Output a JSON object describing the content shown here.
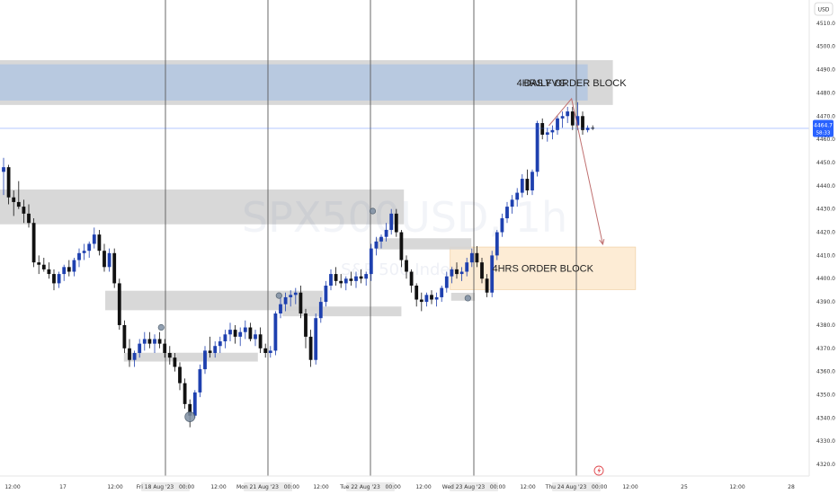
{
  "chart_data": {
    "type": "candlestick",
    "symbol": "SPX500USD, 1h",
    "symbol_sub": "S&P 500 Index",
    "currency": "USD",
    "ylim": [
      4315,
      4520
    ],
    "price_ticks": [
      4320.0,
      4330.0,
      4340.0,
      4350.0,
      4360.0,
      4370.0,
      4380.0,
      4390.0,
      4400.0,
      4410.0,
      4420.0,
      4430.0,
      4440.0,
      4450.0,
      4460.0,
      4470.0,
      4480.0,
      4490.0,
      4500.0,
      4510.0
    ],
    "time_labels": [
      "12:00",
      "17",
      "12:00",
      "Fri 18 Aug '23   00:00",
      "12:00",
      "Mon 21 Aug '23   00:00",
      "12:00",
      "Tue 22 Aug '23   00:00",
      "12:00",
      "Wed 23 Aug '23   00:00",
      "12:00",
      "Thu 24 Aug '23   00:00",
      "12:00",
      "25",
      "12:00",
      "28"
    ],
    "session_dividers": [
      3,
      5,
      7,
      9,
      11
    ],
    "last_price": "4464.7",
    "last_price_sub": "58:33",
    "last_price_value": 4464.7,
    "colors": {
      "up": "#1e40af",
      "down": "#111111",
      "zone_gray": "#d4d4d4",
      "zone_blue": "#b6c8e0",
      "zone_orange": "#fdebd3",
      "arrow": "#c07070",
      "price_line": "#2962ff"
    },
    "zones": [
      {
        "label": "DAILY ORDER BLOCK",
        "color": "gray",
        "x0": 0,
        "x1": 121.0,
        "y0": 4474.8,
        "y1": 4494.1
      },
      {
        "label": "4HRS FVG",
        "color": "blue",
        "x0": 0,
        "x1": 116.0,
        "y0": 4476.7,
        "y1": 4492.3
      },
      {
        "label": "4HRS ORDER BLOCK",
        "color": "orange",
        "x0": 89.4,
        "x1": 125.5,
        "y0": 4395.3,
        "y1": 4413.6
      },
      {
        "label": "",
        "color": "gray",
        "x0": 0,
        "x1": 79.5,
        "y0": 4423.4,
        "y1": 4438.4
      },
      {
        "label": "",
        "color": "gray",
        "x0": 20.9,
        "x1": 63.4,
        "y0": 4386.4,
        "y1": 4394.8
      },
      {
        "label": "",
        "color": "gray",
        "x0": 24.6,
        "x1": 50.5,
        "y0": 4364.3,
        "y1": 4368.1
      },
      {
        "label": "",
        "color": "gray",
        "x0": 56.1,
        "x1": 79.0,
        "y0": 4383.8,
        "y1": 4388.0
      },
      {
        "label": "",
        "color": "gray",
        "x0": 74.6,
        "x1": 92.9,
        "y0": 4412.6,
        "y1": 4417.4
      },
      {
        "label": "",
        "color": "gray",
        "x0": 89.6,
        "x1": 93.6,
        "y0": 4390.5,
        "y1": 4393.9
      }
    ],
    "markers": [
      {
        "x": 31.3,
        "y": 4379.0
      },
      {
        "x": 37.0,
        "y": 4340.5
      },
      {
        "x": 54.7,
        "y": 4392.7
      },
      {
        "x": 73.3,
        "y": 4429.1
      },
      {
        "x": 92.2,
        "y": 4391.6
      }
    ],
    "arrow_path": [
      [
        108.3,
        4465.9
      ],
      [
        112.8,
        4477.5
      ],
      [
        119.0,
        4414.8
      ]
    ],
    "candles": [
      [
        4446.0,
        4452.0,
        4436.0,
        4448.0
      ],
      [
        4448.0,
        4449.0,
        4432.0,
        4435.0
      ],
      [
        4435.0,
        4438.0,
        4427.0,
        4433.0
      ],
      [
        4433.0,
        4442.0,
        4430.0,
        4431.0
      ],
      [
        4431.0,
        4434.0,
        4424.0,
        4428.0
      ],
      [
        4428.0,
        4432.0,
        4422.0,
        4424.0
      ],
      [
        4424.0,
        4426.0,
        4405.0,
        4407.0
      ],
      [
        4407.0,
        4410.0,
        4402.0,
        4406.0
      ],
      [
        4406.0,
        4409.0,
        4403.0,
        4404.0
      ],
      [
        4404.0,
        4407.0,
        4400.0,
        4402.0
      ],
      [
        4402.0,
        4404.0,
        4395.0,
        4398.0
      ],
      [
        4398.0,
        4403.0,
        4396.0,
        4402.0
      ],
      [
        4402.0,
        4406.0,
        4399.0,
        4405.0
      ],
      [
        4405.0,
        4408.0,
        4401.0,
        4403.0
      ],
      [
        4403.0,
        4409.0,
        4401.0,
        4408.0
      ],
      [
        4408.0,
        4413.0,
        4405.0,
        4411.0
      ],
      [
        4411.0,
        4415.0,
        4408.0,
        4412.0
      ],
      [
        4412.0,
        4416.0,
        4409.0,
        4415.0
      ],
      [
        4415.0,
        4422.0,
        4413.0,
        4419.0
      ],
      [
        4419.0,
        4421.0,
        4410.0,
        4412.0
      ],
      [
        4412.0,
        4415.0,
        4403.0,
        4405.0
      ],
      [
        4405.0,
        4413.0,
        4403.0,
        4411.0
      ],
      [
        4411.0,
        4413.0,
        4396.0,
        4398.0
      ],
      [
        4398.0,
        4400.0,
        4378.0,
        4380.0
      ],
      [
        4380.0,
        4382.0,
        4368.0,
        4370.0
      ],
      [
        4370.0,
        4374.0,
        4362.0,
        4365.0
      ],
      [
        4365.0,
        4369.0,
        4362.0,
        4368.0
      ],
      [
        4368.0,
        4374.0,
        4366.0,
        4372.0
      ],
      [
        4372.0,
        4377.0,
        4369.0,
        4374.0
      ],
      [
        4374.0,
        4377.0,
        4370.0,
        4372.0
      ],
      [
        4372.0,
        4376.0,
        4368.0,
        4374.0
      ],
      [
        4374.0,
        4377.0,
        4370.0,
        4372.0
      ],
      [
        4372.0,
        4374.0,
        4366.0,
        4368.0
      ],
      [
        4368.0,
        4371.0,
        4363.0,
        4366.0
      ],
      [
        4366.0,
        4368.0,
        4360.0,
        4362.0
      ],
      [
        4362.0,
        4364.0,
        4352.0,
        4355.0
      ],
      [
        4355.0,
        4357.0,
        4344.0,
        4346.0
      ],
      [
        4346.0,
        4348.0,
        4336.0,
        4341.0
      ],
      [
        4341.0,
        4352.0,
        4340.0,
        4351.0
      ],
      [
        4351.0,
        4363.0,
        4349.0,
        4361.0
      ],
      [
        4361.0,
        4371.0,
        4359.0,
        4369.0
      ],
      [
        4369.0,
        4375.0,
        4366.0,
        4368.0
      ],
      [
        4368.0,
        4373.0,
        4366.0,
        4371.0
      ],
      [
        4371.0,
        4375.0,
        4368.0,
        4373.0
      ],
      [
        4373.0,
        4378.0,
        4370.0,
        4376.0
      ],
      [
        4376.0,
        4381.0,
        4373.0,
        4378.0
      ],
      [
        4378.0,
        4380.0,
        4372.0,
        4375.0
      ],
      [
        4375.0,
        4379.0,
        4371.0,
        4377.0
      ],
      [
        4377.0,
        4382.0,
        4374.0,
        4379.0
      ],
      [
        4379.0,
        4381.0,
        4373.0,
        4374.0
      ],
      [
        4374.0,
        4378.0,
        4371.0,
        4376.0
      ],
      [
        4376.0,
        4379.0,
        4368.0,
        4370.0
      ],
      [
        4370.0,
        4372.0,
        4366.0,
        4368.0
      ],
      [
        4368.0,
        4371.0,
        4366.0,
        4369.0
      ],
      [
        4369.0,
        4386.0,
        4367.0,
        4385.0
      ],
      [
        4385.0,
        4392.0,
        4383.0,
        4389.0
      ],
      [
        4389.0,
        4394.0,
        4386.0,
        4392.0
      ],
      [
        4392.0,
        4395.0,
        4388.0,
        4393.0
      ],
      [
        4393.0,
        4396.0,
        4389.0,
        4394.0
      ],
      [
        4394.0,
        4397.0,
        4383.0,
        4385.0
      ],
      [
        4385.0,
        4387.0,
        4370.0,
        4375.0
      ],
      [
        4375.0,
        4378.0,
        4362.0,
        4365.0
      ],
      [
        4365.0,
        4385.0,
        4363.0,
        4383.0
      ],
      [
        4383.0,
        4392.0,
        4381.0,
        4390.0
      ],
      [
        4390.0,
        4399.0,
        4388.0,
        4397.0
      ],
      [
        4397.0,
        4404.0,
        4395.0,
        4402.0
      ],
      [
        4402.0,
        4405.0,
        4397.0,
        4399.0
      ],
      [
        4399.0,
        4402.0,
        4396.0,
        4398.0
      ],
      [
        4398.0,
        4401.0,
        4395.0,
        4400.0
      ],
      [
        4400.0,
        4403.0,
        4397.0,
        4399.0
      ],
      [
        4399.0,
        4403.0,
        4396.0,
        4401.0
      ],
      [
        4401.0,
        4404.0,
        4398.0,
        4400.0
      ],
      [
        4400.0,
        4403.0,
        4397.0,
        4402.0
      ],
      [
        4402.0,
        4415.0,
        4399.0,
        4413.0
      ],
      [
        4413.0,
        4418.0,
        4410.0,
        4416.0
      ],
      [
        4416.0,
        4419.0,
        4413.0,
        4418.0
      ],
      [
        4418.0,
        4424.0,
        4416.0,
        4421.0
      ],
      [
        4421.0,
        4430.0,
        4419.0,
        4428.0
      ],
      [
        4428.0,
        4430.0,
        4418.0,
        4420.0
      ],
      [
        4420.0,
        4421.0,
        4405.0,
        4408.0
      ],
      [
        4408.0,
        4410.0,
        4400.0,
        4403.0
      ],
      [
        4403.0,
        4404.0,
        4394.0,
        4397.0
      ],
      [
        4397.0,
        4398.0,
        4388.0,
        4391.0
      ],
      [
        4391.0,
        4394.0,
        4386.0,
        4390.0
      ],
      [
        4390.0,
        4394.0,
        4388.0,
        4393.0
      ],
      [
        4393.0,
        4395.0,
        4389.0,
        4391.0
      ],
      [
        4391.0,
        4394.0,
        4388.0,
        4392.0
      ],
      [
        4392.0,
        4397.0,
        4390.0,
        4396.0
      ],
      [
        4396.0,
        4403.0,
        4394.0,
        4401.0
      ],
      [
        4401.0,
        4405.0,
        4398.0,
        4404.0
      ],
      [
        4404.0,
        4407.0,
        4400.0,
        4402.0
      ],
      [
        4402.0,
        4405.0,
        4399.0,
        4403.0
      ],
      [
        4403.0,
        4409.0,
        4401.0,
        4407.0
      ],
      [
        4407.0,
        4413.0,
        4405.0,
        4411.0
      ],
      [
        4411.0,
        4414.0,
        4405.0,
        4407.0
      ],
      [
        4407.0,
        4409.0,
        4398.0,
        4400.0
      ],
      [
        4400.0,
        4402.0,
        4392.0,
        4394.0
      ],
      [
        4394.0,
        4412.0,
        4392.0,
        4410.0
      ],
      [
        4410.0,
        4421.0,
        4408.0,
        4420.0
      ],
      [
        4420.0,
        4428.0,
        4418.0,
        4426.0
      ],
      [
        4426.0,
        4433.0,
        4424.0,
        4431.0
      ],
      [
        4431.0,
        4436.0,
        4428.0,
        4434.0
      ],
      [
        4434.0,
        4439.0,
        4431.0,
        4437.0
      ],
      [
        4437.0,
        4445.0,
        4435.0,
        4443.0
      ],
      [
        4443.0,
        4447.0,
        4436.0,
        4438.0
      ],
      [
        4438.0,
        4447.0,
        4436.0,
        4446.0
      ],
      [
        4446.0,
        4468.0,
        4444.0,
        4467.0
      ],
      [
        4467.0,
        4469.0,
        4460.0,
        4462.0
      ],
      [
        4462.0,
        4465.0,
        4459.0,
        4463.0
      ],
      [
        4463.0,
        4466.0,
        4460.0,
        4464.0
      ],
      [
        4464.0,
        4470.0,
        4462.0,
        4469.0
      ],
      [
        4469.0,
        4472.0,
        4465.0,
        4470.0
      ],
      [
        4470.0,
        4474.0,
        4467.0,
        4472.0
      ],
      [
        4472.0,
        4474.0,
        4464.0,
        4466.0
      ],
      [
        4466.0,
        4476.0,
        4464.0,
        4470.0
      ],
      [
        4470.0,
        4472.0,
        4462.0,
        4464.0
      ],
      [
        4464.0,
        4466.0,
        4463.0,
        4465.0
      ],
      [
        4465.0,
        4466.0,
        4464.0,
        4464.7
      ]
    ]
  }
}
